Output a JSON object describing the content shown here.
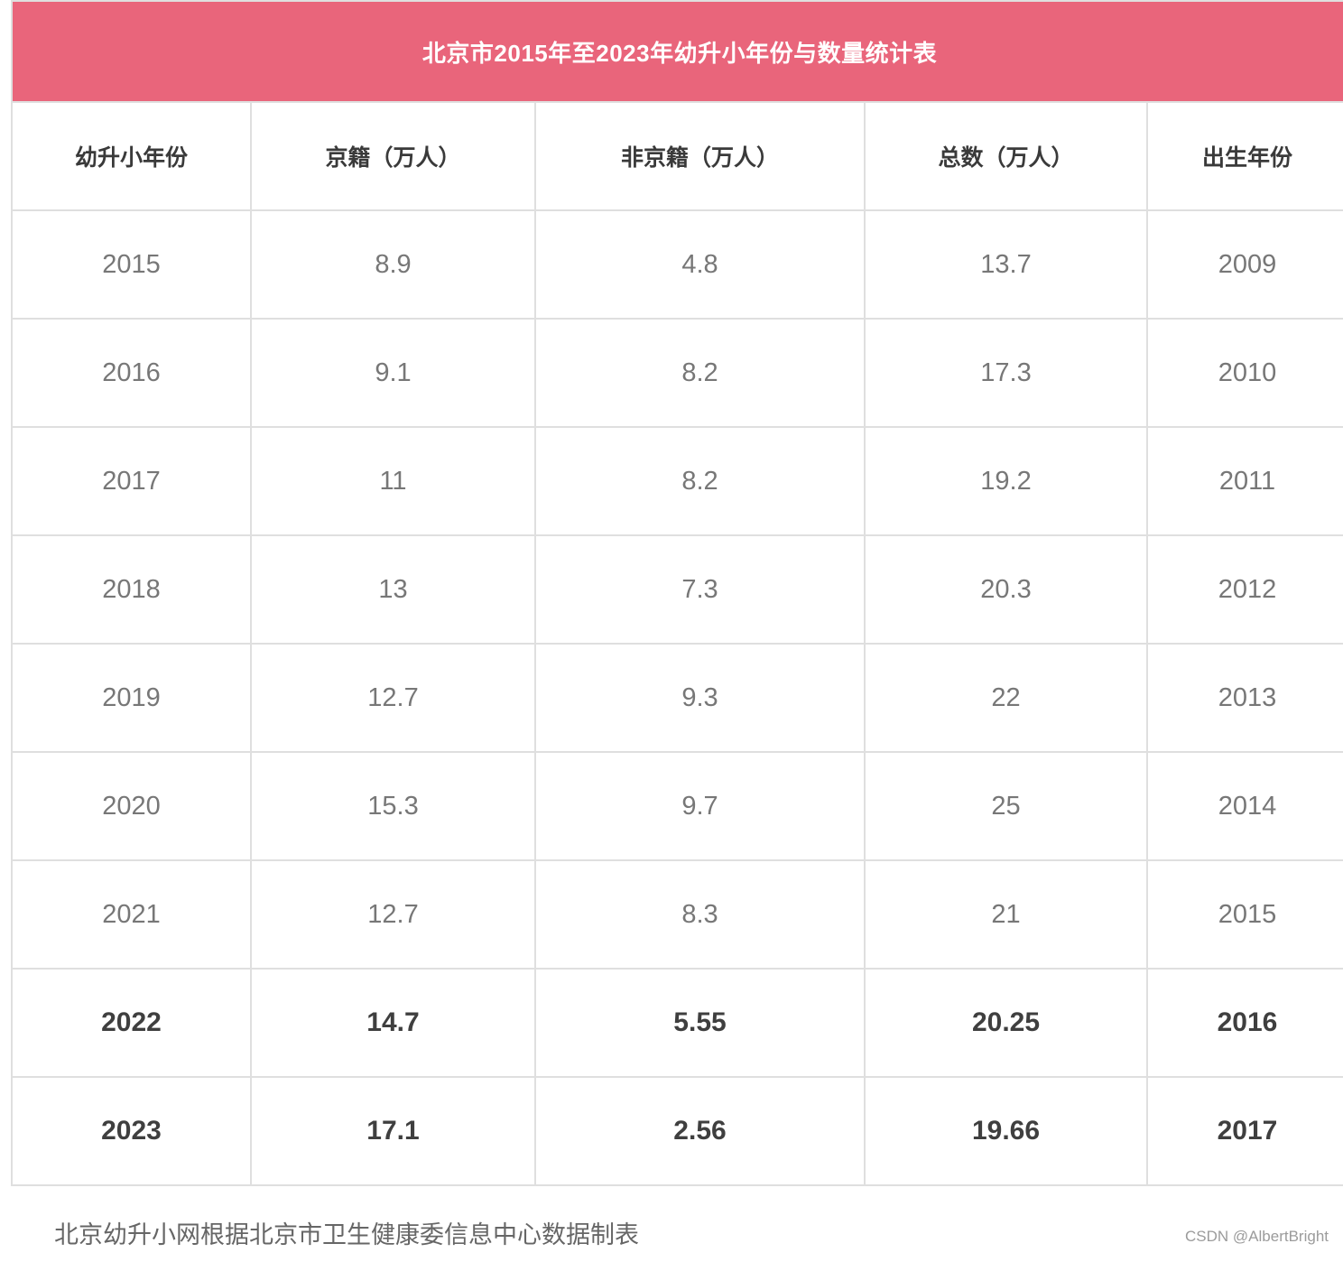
{
  "chart_data": {
    "type": "table",
    "title": "北京市2015年至2023年幼升小年份与数量统计表",
    "columns": [
      "幼升小年份",
      "京籍（万人）",
      "非京籍（万人）",
      "总数（万人）",
      "出生年份"
    ],
    "rows": [
      {
        "cells": [
          "2015",
          "8.9",
          "4.8",
          "13.7",
          "2009"
        ],
        "bold": false
      },
      {
        "cells": [
          "2016",
          "9.1",
          "8.2",
          "17.3",
          "2010"
        ],
        "bold": false
      },
      {
        "cells": [
          "2017",
          "11",
          "8.2",
          "19.2",
          "2011"
        ],
        "bold": false
      },
      {
        "cells": [
          "2018",
          "13",
          "7.3",
          "20.3",
          "2012"
        ],
        "bold": false
      },
      {
        "cells": [
          "2019",
          "12.7",
          "9.3",
          "22",
          "2013"
        ],
        "bold": false
      },
      {
        "cells": [
          "2020",
          "15.3",
          "9.7",
          "25",
          "2014"
        ],
        "bold": false
      },
      {
        "cells": [
          "2021",
          "12.7",
          "8.3",
          "21",
          "2015"
        ],
        "bold": false
      },
      {
        "cells": [
          "2022",
          "14.7",
          "5.55",
          "20.25",
          "2016"
        ],
        "bold": true
      },
      {
        "cells": [
          "2023",
          "17.1",
          "2.56",
          "19.66",
          "2017"
        ],
        "bold": true
      }
    ],
    "source_note": "北京幼升小网根据北京市卫生健康委信息中心数据制表"
  },
  "watermark": "CSDN @AlbertBright",
  "colors": {
    "banner_bg": "#E9657B",
    "banner_text": "#FFFFFF",
    "border": "#DFDFDF",
    "header_text": "#3A3A3A",
    "data_text": "#777777",
    "bold_row_text": "#3F3F3F",
    "source_note_text": "#666666",
    "watermark_text": "#9B9B9B"
  }
}
